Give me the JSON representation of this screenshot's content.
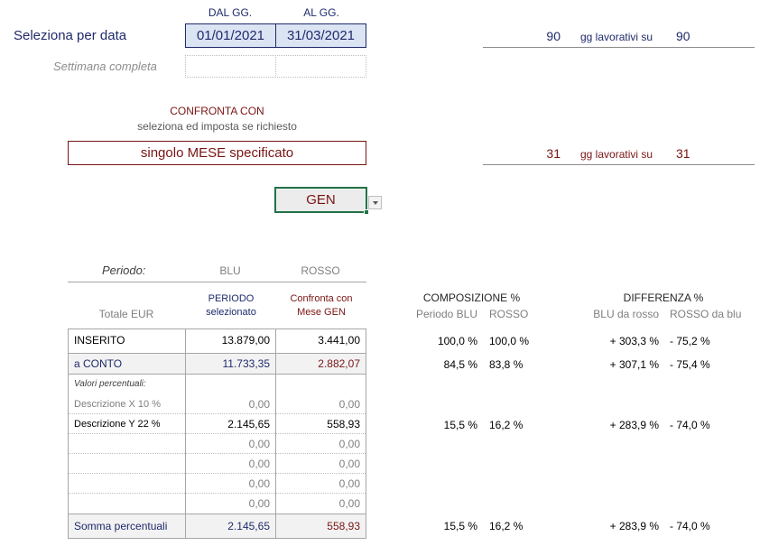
{
  "header": {
    "dal_label": "DAL GG.",
    "al_label": "AL GG.",
    "select_label": "Seleziona per data",
    "dal_value": "01/01/2021",
    "al_value": "31/03/2021",
    "week_label": "Settimana completa",
    "days_count": "90",
    "days_text": "gg lavorativi su",
    "days_total": "90"
  },
  "compare": {
    "title": "CONFRONTA CON",
    "subtitle": "seleziona ed imposta se richiesto",
    "mode_value": "singolo MESE specificato",
    "days_count": "31",
    "days_text": "gg lavorativi su",
    "days_total": "31",
    "month_value": "GEN"
  },
  "table": {
    "periodo_label": "Periodo:",
    "blu_label": "BLU",
    "rosso_label": "ROSSO",
    "totale_label": "Totale EUR",
    "blu_sub": "PERIODO selezionato",
    "rosso_sub": "Confronta con Mese GEN",
    "comp_title": "COMPOSIZIONE  %",
    "comp_blu": "Periodo BLU",
    "comp_rosso": "ROSSO",
    "diff_title": "DIFFERENZA  %",
    "diff_blu": "BLU da rosso",
    "diff_rosso": "ROSSO da blu",
    "rows": [
      {
        "label": "INSERITO",
        "blu": "13.879,00",
        "rosso": "3.441,00",
        "cb": "100,0 %",
        "cr": "100,0 %",
        "db": "+ 303,3 %",
        "dr": "- 75,2 %"
      },
      {
        "label": "a CONTO",
        "blu": "11.733,35",
        "rosso": "2.882,07",
        "cb": "84,5 %",
        "cr": "83,8 %",
        "db": "+ 307,1 %",
        "dr": "- 75,4 %"
      },
      {
        "label": "Valori percentuali:",
        "blu": "",
        "rosso": "",
        "cb": "",
        "cr": "",
        "db": "",
        "dr": ""
      },
      {
        "label": "Descrizione X 10 %",
        "blu": "0,00",
        "rosso": "0,00",
        "cb": "",
        "cr": "",
        "db": "",
        "dr": ""
      },
      {
        "label": "Descrizione Y 22 %",
        "blu": "2.145,65",
        "rosso": "558,93",
        "cb": "15,5 %",
        "cr": "16,2 %",
        "db": "+ 283,9 %",
        "dr": "- 74,0 %"
      },
      {
        "label": "",
        "blu": "0,00",
        "rosso": "0,00",
        "cb": "",
        "cr": "",
        "db": "",
        "dr": ""
      },
      {
        "label": "",
        "blu": "0,00",
        "rosso": "0,00",
        "cb": "",
        "cr": "",
        "db": "",
        "dr": ""
      },
      {
        "label": "",
        "blu": "0,00",
        "rosso": "0,00",
        "cb": "",
        "cr": "",
        "db": "",
        "dr": ""
      },
      {
        "label": "",
        "blu": "0,00",
        "rosso": "0,00",
        "cb": "",
        "cr": "",
        "db": "",
        "dr": ""
      },
      {
        "label": "Somma percentuali",
        "blu": "2.145,65",
        "rosso": "558,93",
        "cb": "15,5 %",
        "cr": "16,2 %",
        "db": "+ 283,9 %",
        "dr": "- 74,0 %"
      }
    ]
  }
}
